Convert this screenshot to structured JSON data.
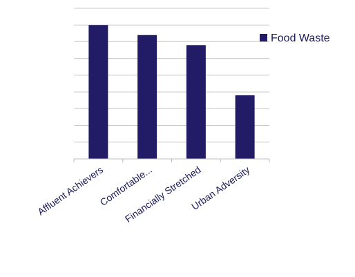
{
  "colors": {
    "bar": "#221c66",
    "gridline": "#c8c8c8",
    "axis": "#bcbcbc",
    "text": "#1a1a5c"
  },
  "chart_data": {
    "type": "bar",
    "categories": [
      "Affluent Achievers",
      "Comfortable...",
      "Financially Stretched",
      "Urban Adversity"
    ],
    "series": [
      {
        "name": "Food Waste",
        "values": [
          8,
          7.4,
          6.8,
          3.8
        ]
      }
    ],
    "ylim": [
      0,
      9
    ],
    "grid": true,
    "legend_position": "right",
    "ytick_labels_shown": false
  }
}
